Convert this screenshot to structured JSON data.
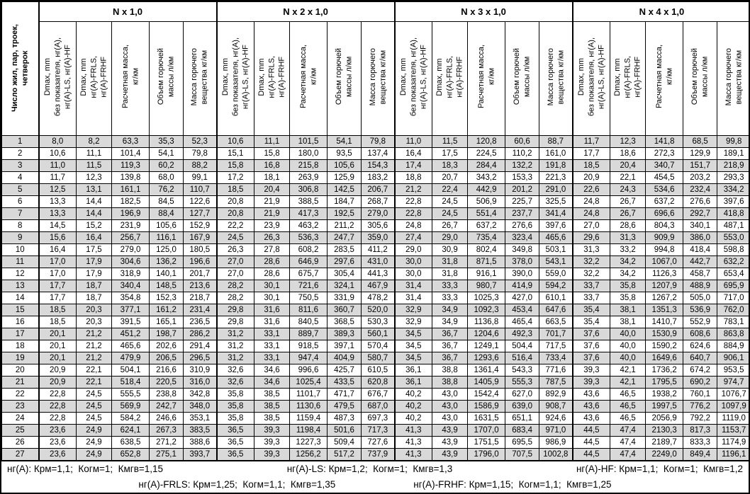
{
  "table": {
    "row_label_header": "Число жил, пар, троек,\nчетверок",
    "column_headers": [
      "Dmax, mm\nбез показателя, нг(А),\nнг(А)-LS, нг(А)-HF",
      "Dmax, mm\nнг(А)-FRLS,\nнг(А)-FRHF",
      "Расчетная масса,\nкг/км",
      "Объем горючей\nмассы л/км",
      "Масса горючего\nвещества кг/км"
    ],
    "sections": [
      {
        "title": "N x 1,0"
      },
      {
        "title": "N x 2 x 1,0"
      },
      {
        "title": "N x 3 x 1,0"
      },
      {
        "title": "N x 4 x 1,0"
      }
    ],
    "rows": [
      {
        "label": "1",
        "cells": [
          [
            "8,0",
            "8,2",
            "63,3",
            "35,3",
            "52,3"
          ],
          [
            "10,6",
            "11,1",
            "101,5",
            "54,1",
            "79,8"
          ],
          [
            "11,0",
            "11,5",
            "120,8",
            "60,6",
            "88,7"
          ],
          [
            "11,7",
            "12,3",
            "141,8",
            "68,5",
            "99,8"
          ]
        ]
      },
      {
        "label": "2",
        "cells": [
          [
            "10,6",
            "11,1",
            "101,4",
            "54,1",
            "79,8"
          ],
          [
            "15,1",
            "15,8",
            "180,0",
            "93,5",
            "137,4"
          ],
          [
            "16,4",
            "17,5",
            "224,5",
            "110,2",
            "161,0"
          ],
          [
            "17,7",
            "18,6",
            "272,3",
            "129,9",
            "189,1"
          ]
        ]
      },
      {
        "label": "3",
        "cells": [
          [
            "11,0",
            "11,5",
            "119,3",
            "60,2",
            "88,2"
          ],
          [
            "15,8",
            "16,8",
            "215,8",
            "105,6",
            "154,3"
          ],
          [
            "17,4",
            "18,3",
            "284,4",
            "132,2",
            "191,8"
          ],
          [
            "18,5",
            "20,4",
            "340,7",
            "151,7",
            "218,9"
          ]
        ]
      },
      {
        "label": "4",
        "cells": [
          [
            "11,7",
            "12,3",
            "139,8",
            "68,0",
            "99,1"
          ],
          [
            "17,2",
            "18,1",
            "263,9",
            "125,9",
            "183,2"
          ],
          [
            "18,8",
            "20,7",
            "343,2",
            "153,3",
            "221,3"
          ],
          [
            "20,9",
            "22,1",
            "454,5",
            "203,2",
            "293,3"
          ]
        ]
      },
      {
        "label": "5",
        "cells": [
          [
            "12,5",
            "13,1",
            "161,1",
            "76,2",
            "110,7"
          ],
          [
            "18,5",
            "20,4",
            "306,8",
            "142,5",
            "206,7"
          ],
          [
            "21,2",
            "22,4",
            "442,9",
            "201,2",
            "291,0"
          ],
          [
            "22,6",
            "24,3",
            "534,6",
            "232,4",
            "334,2"
          ]
        ]
      },
      {
        "label": "6",
        "cells": [
          [
            "13,3",
            "14,4",
            "182,5",
            "84,5",
            "122,6"
          ],
          [
            "20,8",
            "21,9",
            "388,5",
            "184,7",
            "268,7"
          ],
          [
            "22,8",
            "24,5",
            "506,9",
            "225,7",
            "325,5"
          ],
          [
            "24,8",
            "26,7",
            "637,2",
            "276,6",
            "397,6"
          ]
        ]
      },
      {
        "label": "7",
        "cells": [
          [
            "13,3",
            "14,4",
            "196,9",
            "88,4",
            "127,7"
          ],
          [
            "20,8",
            "21,9",
            "417,3",
            "192,5",
            "279,0"
          ],
          [
            "22,8",
            "24,5",
            "551,4",
            "237,7",
            "341,4"
          ],
          [
            "24,8",
            "26,7",
            "696,6",
            "292,7",
            "418,8"
          ]
        ]
      },
      {
        "label": "8",
        "cells": [
          [
            "14,5",
            "15,2",
            "231,9",
            "105,6",
            "152,9"
          ],
          [
            "22,2",
            "23,9",
            "463,2",
            "211,2",
            "305,6"
          ],
          [
            "24,8",
            "26,7",
            "637,2",
            "276,6",
            "397,6"
          ],
          [
            "27,0",
            "28,6",
            "804,3",
            "340,1",
            "487,1"
          ]
        ]
      },
      {
        "label": "9",
        "cells": [
          [
            "15,6",
            "16,4",
            "256,7",
            "116,1",
            "167,9"
          ],
          [
            "24,5",
            "26,3",
            "536,3",
            "247,7",
            "359,0"
          ],
          [
            "27,4",
            "29,0",
            "735,4",
            "323,4",
            "465,6"
          ],
          [
            "29,6",
            "31,3",
            "909,9",
            "386,0",
            "553,0"
          ]
        ]
      },
      {
        "label": "10",
        "cells": [
          [
            "16,4",
            "17,5",
            "279,0",
            "125,0",
            "180,5"
          ],
          [
            "26,3",
            "27,8",
            "608,2",
            "283,5",
            "411,2"
          ],
          [
            "29,0",
            "30,9",
            "802,4",
            "349,8",
            "503,1"
          ],
          [
            "31,3",
            "33,2",
            "994,8",
            "418,4",
            "598,8"
          ]
        ]
      },
      {
        "label": "11",
        "cells": [
          [
            "17,0",
            "17,9",
            "304,6",
            "136,2",
            "196,6"
          ],
          [
            "27,0",
            "28,6",
            "646,9",
            "297,6",
            "431,0"
          ],
          [
            "30,0",
            "31,8",
            "871,5",
            "378,0",
            "543,1"
          ],
          [
            "32,2",
            "34,2",
            "1067,0",
            "442,7",
            "632,2"
          ]
        ]
      },
      {
        "label": "12",
        "cells": [
          [
            "17,0",
            "17,9",
            "318,9",
            "140,1",
            "201,7"
          ],
          [
            "27,0",
            "28,6",
            "675,7",
            "305,4",
            "441,3"
          ],
          [
            "30,0",
            "31,8",
            "916,1",
            "390,0",
            "559,0"
          ],
          [
            "32,2",
            "34,2",
            "1126,3",
            "458,7",
            "653,4"
          ]
        ]
      },
      {
        "label": "13",
        "cells": [
          [
            "17,7",
            "18,7",
            "340,4",
            "148,5",
            "213,6"
          ],
          [
            "28,2",
            "30,1",
            "721,6",
            "324,1",
            "467,9"
          ],
          [
            "31,4",
            "33,3",
            "980,7",
            "414,9",
            "594,2"
          ],
          [
            "33,7",
            "35,8",
            "1207,9",
            "488,9",
            "695,9"
          ]
        ]
      },
      {
        "label": "14",
        "cells": [
          [
            "17,7",
            "18,7",
            "354,8",
            "152,3",
            "218,7"
          ],
          [
            "28,2",
            "30,1",
            "750,5",
            "331,9",
            "478,2"
          ],
          [
            "31,4",
            "33,3",
            "1025,3",
            "427,0",
            "610,1"
          ],
          [
            "33,7",
            "35,8",
            "1267,2",
            "505,0",
            "717,0"
          ]
        ]
      },
      {
        "label": "15",
        "cells": [
          [
            "18,5",
            "20,3",
            "377,1",
            "161,2",
            "231,4"
          ],
          [
            "29,8",
            "31,6",
            "811,6",
            "360,7",
            "520,0"
          ],
          [
            "32,9",
            "34,9",
            "1092,3",
            "453,4",
            "647,6"
          ],
          [
            "35,4",
            "38,1",
            "1351,3",
            "536,9",
            "762,0"
          ]
        ]
      },
      {
        "label": "16",
        "cells": [
          [
            "18,5",
            "20,3",
            "391,5",
            "165,1",
            "236,5"
          ],
          [
            "29,8",
            "31,6",
            "840,5",
            "368,5",
            "530,3"
          ],
          [
            "32,9",
            "34,9",
            "1136,8",
            "465,4",
            "663,5"
          ],
          [
            "35,4",
            "38,1",
            "1410,7",
            "552,9",
            "783,1"
          ]
        ]
      },
      {
        "label": "17",
        "cells": [
          [
            "20,1",
            "21,2",
            "451,2",
            "198,7",
            "286,2"
          ],
          [
            "31,2",
            "33,1",
            "889,7",
            "389,3",
            "560,1"
          ],
          [
            "34,5",
            "36,7",
            "1204,6",
            "492,3",
            "701,7"
          ],
          [
            "37,6",
            "40,0",
            "1530,9",
            "608,6",
            "863,8"
          ]
        ]
      },
      {
        "label": "18",
        "cells": [
          [
            "20,1",
            "21,2",
            "465,6",
            "202,6",
            "291,4"
          ],
          [
            "31,2",
            "33,1",
            "918,5",
            "397,1",
            "570,4"
          ],
          [
            "34,5",
            "36,7",
            "1249,1",
            "504,4",
            "717,5"
          ],
          [
            "37,6",
            "40,0",
            "1590,2",
            "624,6",
            "884,9"
          ]
        ]
      },
      {
        "label": "19",
        "cells": [
          [
            "20,1",
            "21,2",
            "479,9",
            "206,5",
            "296,5"
          ],
          [
            "31,2",
            "33,1",
            "947,4",
            "404,9",
            "580,7"
          ],
          [
            "34,5",
            "36,7",
            "1293,6",
            "516,4",
            "733,4"
          ],
          [
            "37,6",
            "40,0",
            "1649,6",
            "640,7",
            "906,1"
          ]
        ]
      },
      {
        "label": "20",
        "cells": [
          [
            "20,9",
            "22,1",
            "504,1",
            "216,6",
            "310,9"
          ],
          [
            "32,6",
            "34,6",
            "996,6",
            "425,7",
            "610,5"
          ],
          [
            "36,1",
            "38,8",
            "1361,4",
            "543,3",
            "771,6"
          ],
          [
            "39,3",
            "42,1",
            "1736,2",
            "674,2",
            "953,5"
          ]
        ]
      },
      {
        "label": "21",
        "cells": [
          [
            "20,9",
            "22,1",
            "518,4",
            "220,5",
            "316,0"
          ],
          [
            "32,6",
            "34,6",
            "1025,4",
            "433,5",
            "620,8"
          ],
          [
            "36,1",
            "38,8",
            "1405,9",
            "555,3",
            "787,5"
          ],
          [
            "39,3",
            "42,1",
            "1795,5",
            "690,2",
            "974,7"
          ]
        ]
      },
      {
        "label": "22",
        "cells": [
          [
            "22,8",
            "24,5",
            "555,5",
            "238,8",
            "342,8"
          ],
          [
            "35,8",
            "38,5",
            "1101,7",
            "471,7",
            "676,7"
          ],
          [
            "40,2",
            "43,0",
            "1542,4",
            "627,0",
            "892,9"
          ],
          [
            "43,6",
            "46,5",
            "1938,2",
            "760,1",
            "1076,7"
          ]
        ]
      },
      {
        "label": "23",
        "cells": [
          [
            "22,8",
            "24,5",
            "569,9",
            "242,7",
            "348,0"
          ],
          [
            "35,8",
            "38,5",
            "1130,6",
            "479,5",
            "687,0"
          ],
          [
            "40,2",
            "43,0",
            "1586,9",
            "639,0",
            "908,7"
          ],
          [
            "43,6",
            "46,5",
            "1997,5",
            "776,2",
            "1097,9"
          ]
        ]
      },
      {
        "label": "24",
        "cells": [
          [
            "22,8",
            "24,5",
            "584,2",
            "246,6",
            "353,1"
          ],
          [
            "35,8",
            "38,5",
            "1159,4",
            "487,3",
            "697,3"
          ],
          [
            "40,2",
            "43,0",
            "1631,5",
            "651,1",
            "924,6"
          ],
          [
            "43,6",
            "46,5",
            "2056,9",
            "792,2",
            "1119,0"
          ]
        ]
      },
      {
        "label": "25",
        "cells": [
          [
            "23,6",
            "24,9",
            "624,1",
            "267,3",
            "383,5"
          ],
          [
            "36,5",
            "39,3",
            "1198,4",
            "501,6",
            "717,3"
          ],
          [
            "41,3",
            "43,9",
            "1707,0",
            "683,4",
            "971,0"
          ],
          [
            "44,5",
            "47,4",
            "2130,3",
            "817,3",
            "1153,7"
          ]
        ]
      },
      {
        "label": "26",
        "cells": [
          [
            "23,6",
            "24,9",
            "638,5",
            "271,2",
            "388,6"
          ],
          [
            "36,5",
            "39,3",
            "1227,3",
            "509,4",
            "727,6"
          ],
          [
            "41,3",
            "43,9",
            "1751,5",
            "695,5",
            "986,9"
          ],
          [
            "44,5",
            "47,4",
            "2189,7",
            "833,3",
            "1174,9"
          ]
        ]
      },
      {
        "label": "27",
        "cells": [
          [
            "23,6",
            "24,9",
            "652,8",
            "275,1",
            "393,7"
          ],
          [
            "36,5",
            "39,3",
            "1256,2",
            "517,2",
            "737,9"
          ],
          [
            "41,3",
            "43,9",
            "1796,0",
            "707,5",
            "1002,8"
          ],
          [
            "44,5",
            "47,4",
            "2249,0",
            "849,4",
            "1196,1"
          ]
        ]
      }
    ],
    "footnotes": [
      "нг(А): Крм=1,1;  Когм=1;  Кмгв=1,15",
      "нг(А)-LS: Крм=1,2;  Когм=1;  Кмгв=1,3",
      "нг(А)-HF: Крм=1,1;  Когм=1;  Кмгв=1,2",
      "нг(А)-FRLS: Крм=1,25;  Когм=1,1;  Кмгв=1,35",
      "нг(А)-FRHF: Крм=1,15;  Когм=1,1;  Кмгв=1,25"
    ],
    "stripe_color": "#d9d9d9"
  }
}
